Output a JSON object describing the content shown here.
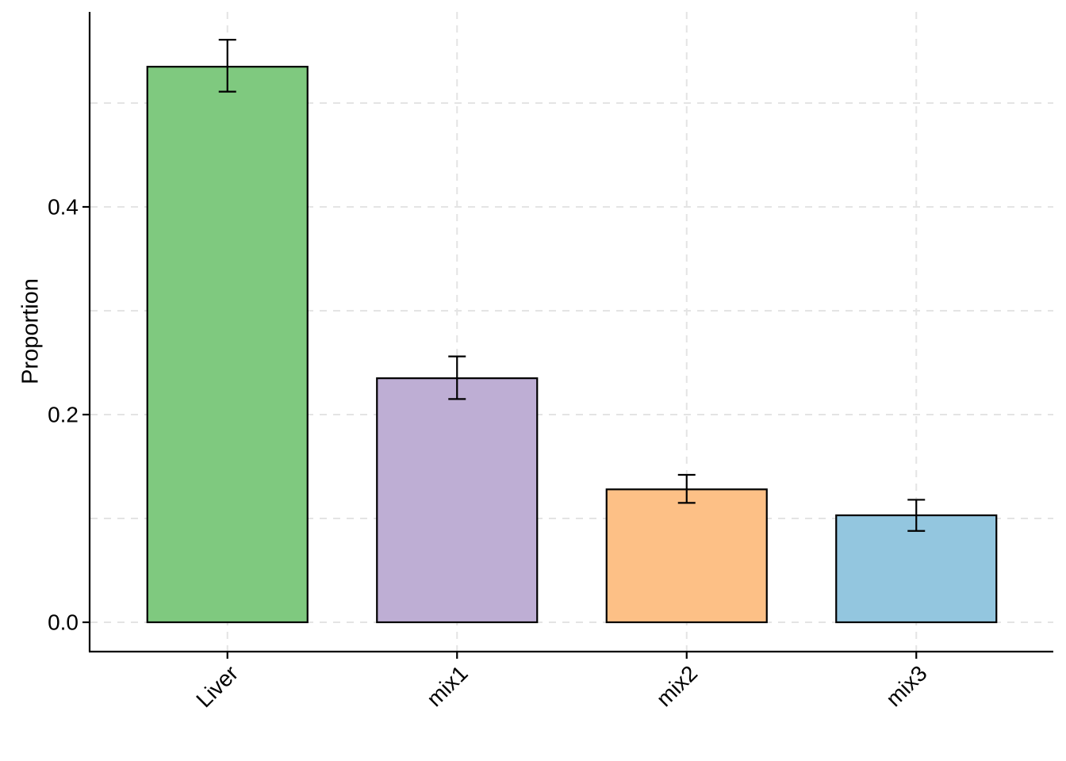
{
  "chart_data": {
    "type": "bar",
    "title": "",
    "xlabel": "",
    "ylabel": "Proportion",
    "categories": [
      "Liver",
      "mix1",
      "mix2",
      "mix3"
    ],
    "values": [
      0.535,
      0.235,
      0.128,
      0.103
    ],
    "error_low": [
      0.511,
      0.215,
      0.115,
      0.088
    ],
    "error_high": [
      0.561,
      0.256,
      0.142,
      0.118
    ],
    "colors": [
      "#7fc97f",
      "#beaed4",
      "#fdc086",
      "#93c6df"
    ],
    "ylim": [
      -0.028,
      0.586
    ],
    "yticks": [
      0.0,
      0.2,
      0.4
    ],
    "ytick_labels": [
      "0.0",
      "0.2",
      "0.4"
    ],
    "grid": true,
    "legend": "none"
  }
}
